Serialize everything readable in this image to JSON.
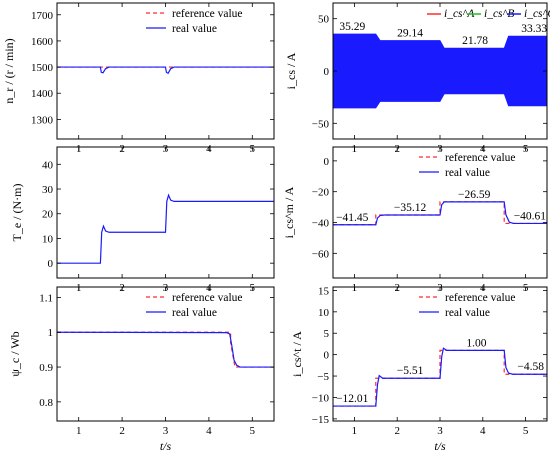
{
  "colors": {
    "reference": "#ff2a2a",
    "real": "#1a1aff",
    "phaseA": "#ff2a2a",
    "phaseB": "#22bb22",
    "phaseC": "#1a1aff"
  },
  "chart_data": [
    {
      "id": "nr",
      "type": "line",
      "xlim": [
        0.5,
        5.5
      ],
      "ylim": [
        1225,
        1745
      ],
      "xticks": [
        1,
        2,
        3,
        4,
        5
      ],
      "yticks": [
        1300,
        1400,
        1500,
        1600,
        1700
      ],
      "ylabel": "n_r / (r / min)",
      "legend": {
        "position": "top-right",
        "entries": [
          "reference value",
          "real value"
        ]
      },
      "series": [
        {
          "name": "reference value",
          "style": "dashed",
          "x": [
            0.5,
            5.5
          ],
          "y": [
            1500,
            1500
          ]
        },
        {
          "name": "real value",
          "style": "solid",
          "x": [
            0.5,
            1.5,
            1.52,
            1.56,
            1.62,
            1.7,
            3.0,
            3.02,
            3.06,
            3.12,
            3.2,
            4.5,
            5.5
          ],
          "y": [
            1500,
            1500,
            1480,
            1478,
            1494,
            1500,
            1500,
            1480,
            1476,
            1494,
            1500,
            1500,
            1500
          ]
        }
      ]
    },
    {
      "id": "ics",
      "type": "area",
      "xlim": [
        0.5,
        5.5
      ],
      "ylim": [
        -65,
        65
      ],
      "xticks": [
        1,
        2,
        3,
        4,
        5
      ],
      "yticks": [
        -50,
        0,
        50
      ],
      "ylabel": "i_cs / A",
      "legend": {
        "position": "top-right",
        "entries": [
          "i_cs^A",
          "i_cs^B",
          "i_cs^C"
        ]
      },
      "envelope": {
        "x": [
          0.5,
          1.5,
          1.6,
          3.0,
          3.1,
          4.5,
          4.6,
          5.5
        ],
        "amp": [
          35.29,
          35.29,
          29.14,
          29.14,
          21.78,
          21.78,
          33.33,
          33.33
        ]
      },
      "labels": [
        {
          "x": 0.95,
          "y": 35.29,
          "text": "35.29"
        },
        {
          "x": 2.3,
          "y": 29.14,
          "text": "29.14"
        },
        {
          "x": 3.82,
          "y": 21.78,
          "text": "21.78"
        },
        {
          "x": 5.2,
          "y": 33.33,
          "text": "33.33"
        }
      ]
    },
    {
      "id": "te",
      "type": "line",
      "xlim": [
        0.5,
        5.5
      ],
      "ylim": [
        -6,
        47
      ],
      "xticks": [
        1,
        2,
        3,
        4,
        5
      ],
      "yticks": [
        0,
        10,
        20,
        30,
        40
      ],
      "ylabel": "T_e / (N·m)",
      "series": [
        {
          "name": "real value",
          "style": "solid",
          "x": [
            0.5,
            1.5,
            1.53,
            1.57,
            1.62,
            1.7,
            3.0,
            3.03,
            3.07,
            3.12,
            3.2,
            5.5
          ],
          "y": [
            0,
            0,
            12.5,
            15,
            13,
            12.5,
            12.5,
            25,
            27.5,
            25.5,
            25,
            25
          ]
        }
      ]
    },
    {
      "id": "icsm",
      "type": "line",
      "xlim": [
        0.5,
        5.5
      ],
      "ylim": [
        -76,
        9
      ],
      "xticks": [
        1,
        2,
        3,
        4,
        5
      ],
      "yticks": [
        -60,
        -40,
        -20,
        0
      ],
      "ylabel": "i_cs^m / A",
      "legend": {
        "position": "top-right",
        "entries": [
          "reference value",
          "real value"
        ]
      },
      "series": [
        {
          "name": "reference value",
          "style": "dashed",
          "x": [
            0.5,
            1.5,
            1.5,
            3.0,
            3.0,
            4.5,
            4.5,
            5.5
          ],
          "y": [
            -41.45,
            -41.45,
            -35.12,
            -35.12,
            -26.59,
            -26.59,
            -40.61,
            -40.61
          ]
        },
        {
          "name": "real value",
          "style": "solid",
          "x": [
            0.5,
            1.5,
            1.54,
            1.6,
            1.7,
            3.0,
            3.04,
            3.1,
            3.2,
            4.5,
            4.54,
            4.62,
            4.72,
            5.5
          ],
          "y": [
            -41.45,
            -41.45,
            -37,
            -35.5,
            -35.12,
            -35.12,
            -28.5,
            -26.6,
            -26.59,
            -26.59,
            -35,
            -39.8,
            -40.61,
            -40.61
          ]
        }
      ],
      "labels": [
        {
          "x": 0.95,
          "y": -41.45,
          "text": "-41.45"
        },
        {
          "x": 2.3,
          "y": -35.12,
          "text": "-35.12"
        },
        {
          "x": 3.8,
          "y": -26.59,
          "text": "-26.59"
        },
        {
          "x": 5.1,
          "y": -40.61,
          "text": "-40.61"
        }
      ]
    },
    {
      "id": "psi",
      "type": "line",
      "xlim": [
        0.5,
        5.5
      ],
      "ylim": [
        0.745,
        1.13
      ],
      "xticks": [
        1,
        2,
        3,
        4,
        5
      ],
      "yticks": [
        0.8,
        0.9,
        1.0,
        1.1
      ],
      "yticklabels": [
        "0.8",
        "0.9",
        "1",
        "1.1"
      ],
      "xlabel": "t/s",
      "ylabel": "ψ_c / Wb",
      "legend": {
        "position": "top-right",
        "entries": [
          "reference value",
          "real value"
        ]
      },
      "series": [
        {
          "name": "reference value",
          "style": "dashed",
          "x": [
            0.5,
            4.5,
            4.5,
            4.6,
            5.5
          ],
          "y": [
            1.0,
            1.0,
            0.97,
            0.9,
            0.9
          ]
        },
        {
          "name": "real value",
          "style": "solid",
          "x": [
            0.5,
            4.4,
            4.48,
            4.53,
            4.58,
            4.64,
            4.72,
            5.5
          ],
          "y": [
            1.0,
            0.999,
            0.995,
            0.96,
            0.92,
            0.905,
            0.9,
            0.9
          ]
        }
      ]
    },
    {
      "id": "icst",
      "type": "line",
      "xlim": [
        0.5,
        5.5
      ],
      "ylim": [
        -15.5,
        15.8
      ],
      "xticks": [
        1,
        2,
        3,
        4,
        5
      ],
      "yticks": [
        -15,
        -10,
        -5,
        0,
        5,
        10,
        15
      ],
      "xlabel": "t/s",
      "ylabel": "i_cs^t / A",
      "legend": {
        "position": "top-right",
        "entries": [
          "reference value",
          "real value"
        ]
      },
      "series": [
        {
          "name": "reference value",
          "style": "dashed",
          "x": [
            0.5,
            1.5,
            1.5,
            3.0,
            3.0,
            4.5,
            4.5,
            5.5
          ],
          "y": [
            -12.01,
            -12.01,
            -5.51,
            -5.51,
            1.0,
            1.0,
            -4.58,
            -4.58
          ]
        },
        {
          "name": "real value",
          "style": "solid",
          "x": [
            0.5,
            1.5,
            1.54,
            1.58,
            1.66,
            3.0,
            3.04,
            3.08,
            3.16,
            4.5,
            4.54,
            4.6,
            4.7,
            5.5
          ],
          "y": [
            -12.01,
            -12.01,
            -7,
            -4.9,
            -5.51,
            -5.51,
            -0.5,
            1.5,
            1.0,
            1.0,
            -3,
            -4.3,
            -4.58,
            -4.58
          ]
        }
      ],
      "labels": [
        {
          "x": 0.95,
          "y": -12.01,
          "text": "-12.01"
        },
        {
          "x": 2.3,
          "y": -5.51,
          "text": "-5.51"
        },
        {
          "x": 3.85,
          "y": 1.0,
          "text": "1.00"
        },
        {
          "x": 5.12,
          "y": -4.58,
          "text": "-4.58"
        }
      ]
    }
  ]
}
